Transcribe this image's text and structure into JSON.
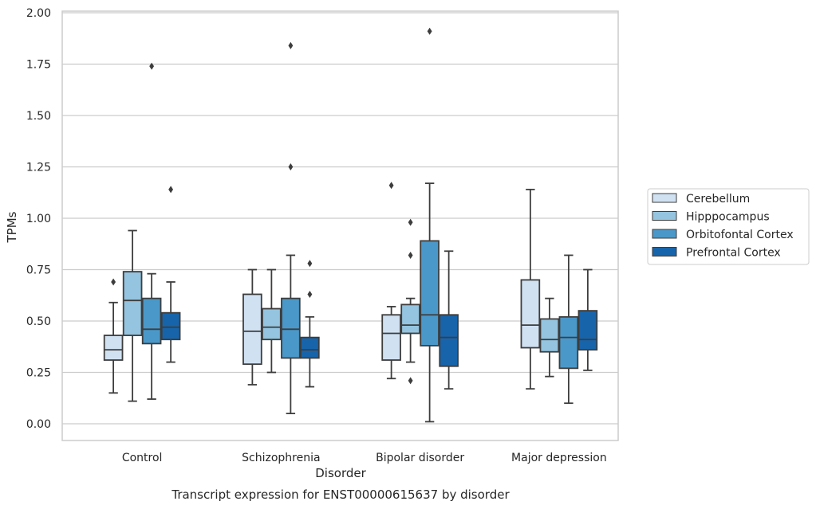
{
  "chart_data": {
    "type": "box",
    "xlabel": "Disorder",
    "ylabel": "TPMs",
    "caption": "Transcript expression for ENST00000615637 by disorder",
    "categories": [
      "Control",
      "Schizophrenia",
      "Bipolar disorder",
      "Major depression"
    ],
    "ylim": [
      -0.08,
      2.01
    ],
    "yticks": [
      "0.00",
      "0.25",
      "0.50",
      "0.75",
      "1.00",
      "1.25",
      "1.50",
      "1.75",
      "2.00"
    ],
    "grid": true,
    "legend_position": "right",
    "series": [
      {
        "name": "Cerebellum",
        "color": "#d0e1f2",
        "boxes": [
          {
            "whislo": 0.15,
            "q1": 0.31,
            "med": 0.36,
            "q3": 0.43,
            "whishi": 0.59,
            "fliers": [
              0.69
            ]
          },
          {
            "whislo": 0.19,
            "q1": 0.29,
            "med": 0.45,
            "q3": 0.63,
            "whishi": 0.75,
            "fliers": []
          },
          {
            "whislo": 0.22,
            "q1": 0.31,
            "med": 0.44,
            "q3": 0.53,
            "whishi": 0.57,
            "fliers": [
              1.16
            ]
          },
          {
            "whislo": 0.17,
            "q1": 0.37,
            "med": 0.48,
            "q3": 0.7,
            "whishi": 1.14,
            "fliers": []
          }
        ]
      },
      {
        "name": "Hipppocampus",
        "color": "#94c4df",
        "boxes": [
          {
            "whislo": 0.11,
            "q1": 0.43,
            "med": 0.6,
            "q3": 0.74,
            "whishi": 0.94,
            "fliers": []
          },
          {
            "whislo": 0.25,
            "q1": 0.41,
            "med": 0.47,
            "q3": 0.56,
            "whishi": 0.75,
            "fliers": []
          },
          {
            "whislo": 0.3,
            "q1": 0.44,
            "med": 0.48,
            "q3": 0.58,
            "whishi": 0.61,
            "fliers": [
              0.21,
              0.82,
              0.98
            ]
          },
          {
            "whislo": 0.23,
            "q1": 0.35,
            "med": 0.41,
            "q3": 0.51,
            "whishi": 0.61,
            "fliers": []
          }
        ]
      },
      {
        "name": "Orbitofontal Cortex",
        "color": "#4a98c9",
        "boxes": [
          {
            "whislo": 0.12,
            "q1": 0.39,
            "med": 0.46,
            "q3": 0.61,
            "whishi": 0.73,
            "fliers": [
              1.74
            ]
          },
          {
            "whislo": 0.05,
            "q1": 0.32,
            "med": 0.46,
            "q3": 0.61,
            "whishi": 0.82,
            "fliers": [
              1.25,
              1.84
            ]
          },
          {
            "whislo": 0.01,
            "q1": 0.38,
            "med": 0.53,
            "q3": 0.89,
            "whishi": 1.17,
            "fliers": [
              1.91
            ]
          },
          {
            "whislo": 0.1,
            "q1": 0.27,
            "med": 0.42,
            "q3": 0.52,
            "whishi": 0.82,
            "fliers": []
          }
        ]
      },
      {
        "name": "Prefrontal Cortex",
        "color": "#1764ab",
        "boxes": [
          {
            "whislo": 0.3,
            "q1": 0.41,
            "med": 0.47,
            "q3": 0.54,
            "whishi": 0.69,
            "fliers": [
              1.14
            ]
          },
          {
            "whislo": 0.18,
            "q1": 0.32,
            "med": 0.36,
            "q3": 0.42,
            "whishi": 0.52,
            "fliers": [
              0.63,
              0.78
            ]
          },
          {
            "whislo": 0.17,
            "q1": 0.28,
            "med": 0.42,
            "q3": 0.53,
            "whishi": 0.84,
            "fliers": []
          },
          {
            "whislo": 0.26,
            "q1": 0.36,
            "med": 0.41,
            "q3": 0.55,
            "whishi": 0.75,
            "fliers": []
          }
        ]
      }
    ]
  }
}
